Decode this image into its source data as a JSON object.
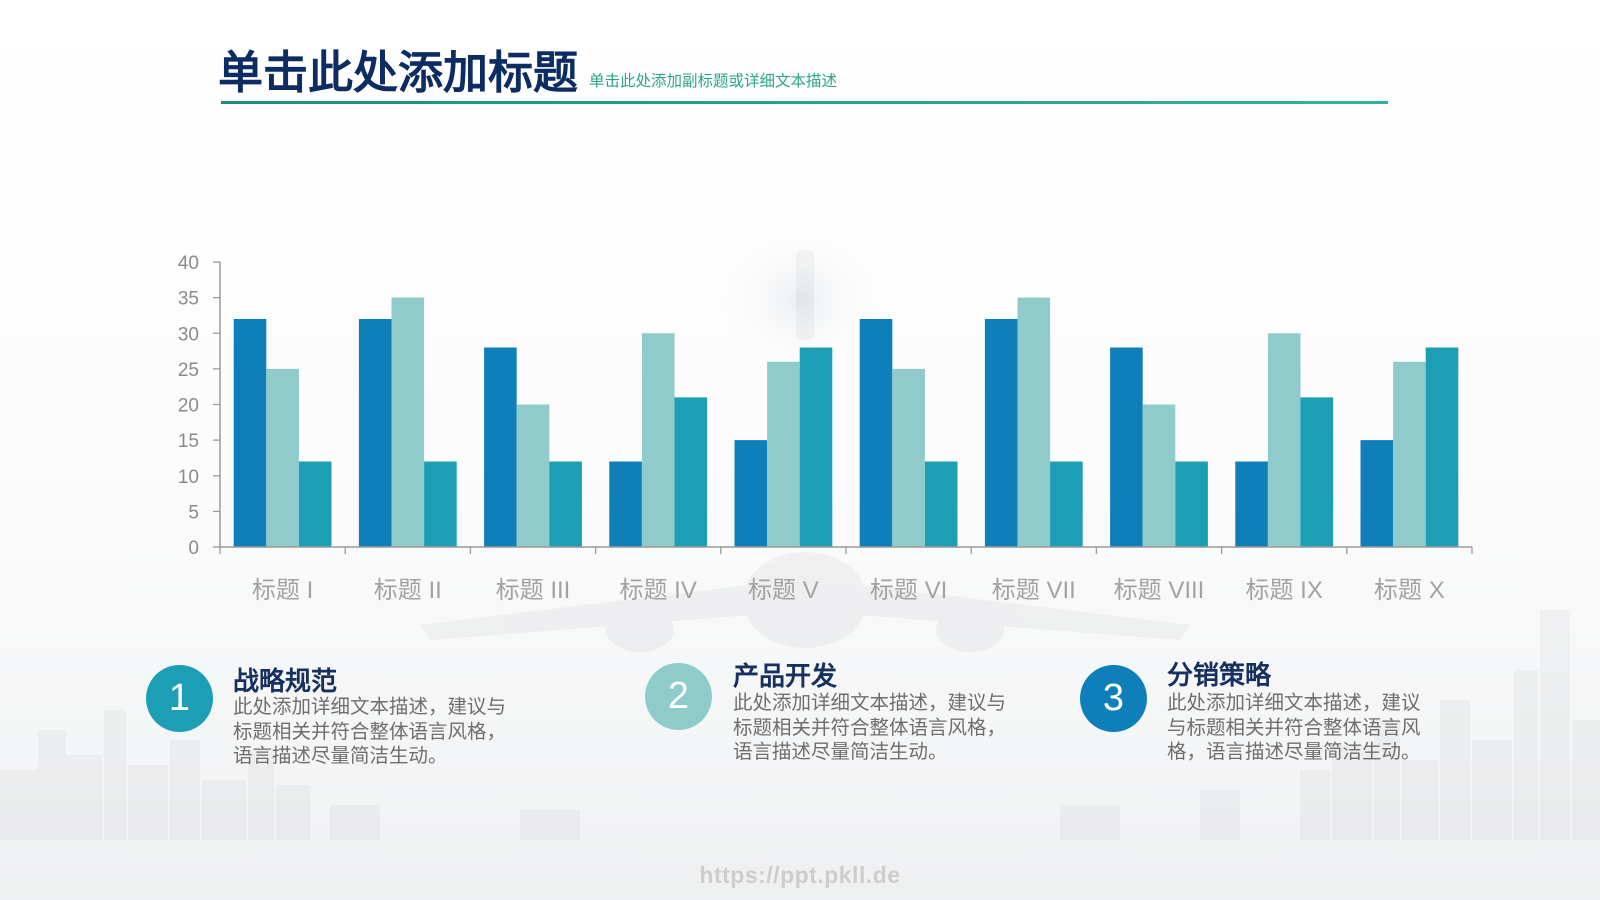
{
  "slide": {
    "title": "单击此处添加标题",
    "subtitle": "单击此处添加副标题或详细文本描述",
    "watermark": "https://ppt.pkll.de"
  },
  "colors": {
    "title": "#0c2c63",
    "subtitle": "#2aa58a",
    "rule": "#2aa58a",
    "axis": "#9a9a9a"
  },
  "chart_data": {
    "type": "bar",
    "categories": [
      "标题 I",
      "标题 II",
      "标题 III",
      "标题 IV",
      "标题 V",
      "标题 VI",
      "标题 VII",
      "标题 VIII",
      "标题 IX",
      "标题 X"
    ],
    "series": [
      {
        "color": "#0f7fba",
        "values": [
          32,
          32,
          28,
          12,
          15,
          32,
          32,
          28,
          12,
          15
        ]
      },
      {
        "color": "#90cbcc",
        "values": [
          25,
          35,
          20,
          30,
          26,
          25,
          35,
          20,
          30,
          26
        ]
      },
      {
        "color": "#1c9fb4",
        "values": [
          12,
          12,
          12,
          21,
          28,
          12,
          12,
          12,
          21,
          28
        ]
      }
    ],
    "ylim": [
      0,
      40
    ],
    "yticks": [
      0,
      5,
      10,
      15,
      20,
      25,
      30,
      35,
      40
    ],
    "grid": false,
    "legend": "none"
  },
  "features": [
    {
      "number": "1",
      "color": "#1c9fb4",
      "title": "战略规范",
      "description_lines": [
        "此处添加详细文本描述，建议与",
        "标题相关并符合整体语言风格，",
        "语言描述尽量简洁生动。"
      ]
    },
    {
      "number": "2",
      "color": "#90cbcc",
      "title": "产品开发",
      "description_lines": [
        "此处添加详细文本描述，建议与",
        "标题相关并符合整体语言风格，",
        "语言描述尽量简洁生动。"
      ]
    },
    {
      "number": "3",
      "color": "#0f7fba",
      "title": "分销策略",
      "description_lines": [
        "此处添加详细文本描述，建议",
        "与标题相关并符合整体语言风",
        "格，语言描述尽量简洁生动。"
      ]
    }
  ]
}
